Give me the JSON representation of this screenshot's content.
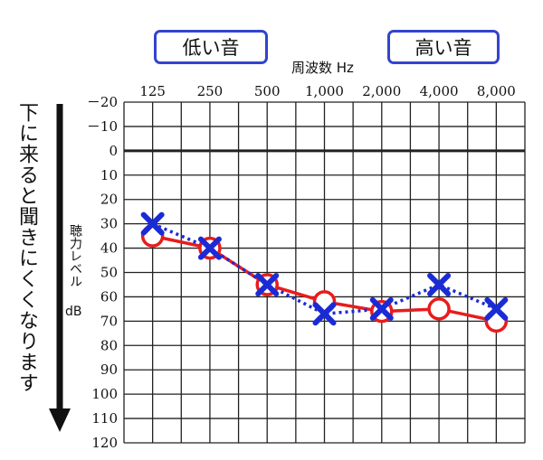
{
  "badges": {
    "low": "低い音",
    "high": "高い音"
  },
  "side_caption": "下に来ると聞きにくくなります",
  "chart_data": {
    "type": "line",
    "title": "",
    "xlabel": "周波数 Hz",
    "ylabel": "聴力レベル",
    "yunit": "dB",
    "categories": [
      "125",
      "250",
      "500",
      "1,000",
      "2,000",
      "4,000",
      "8,000"
    ],
    "y_ticks": [
      "－20",
      "－10",
      "0",
      "10",
      "20",
      "30",
      "40",
      "50",
      "60",
      "70",
      "80",
      "90",
      "100",
      "110",
      "120"
    ],
    "ylim": [
      -20,
      120
    ],
    "y_inverted": true,
    "grid": true,
    "series": [
      {
        "marker": "cross",
        "color": "#1a2bd6",
        "line": "dotted",
        "values": [
          30,
          40,
          55,
          67,
          65,
          55,
          65
        ]
      },
      {
        "marker": "circle",
        "color": "#e81c1c",
        "line": "solid",
        "values": [
          35,
          40,
          55,
          62,
          66,
          65,
          70
        ]
      }
    ],
    "colors": {
      "arrow": "#111111",
      "badge_border": "#3344cc"
    }
  }
}
